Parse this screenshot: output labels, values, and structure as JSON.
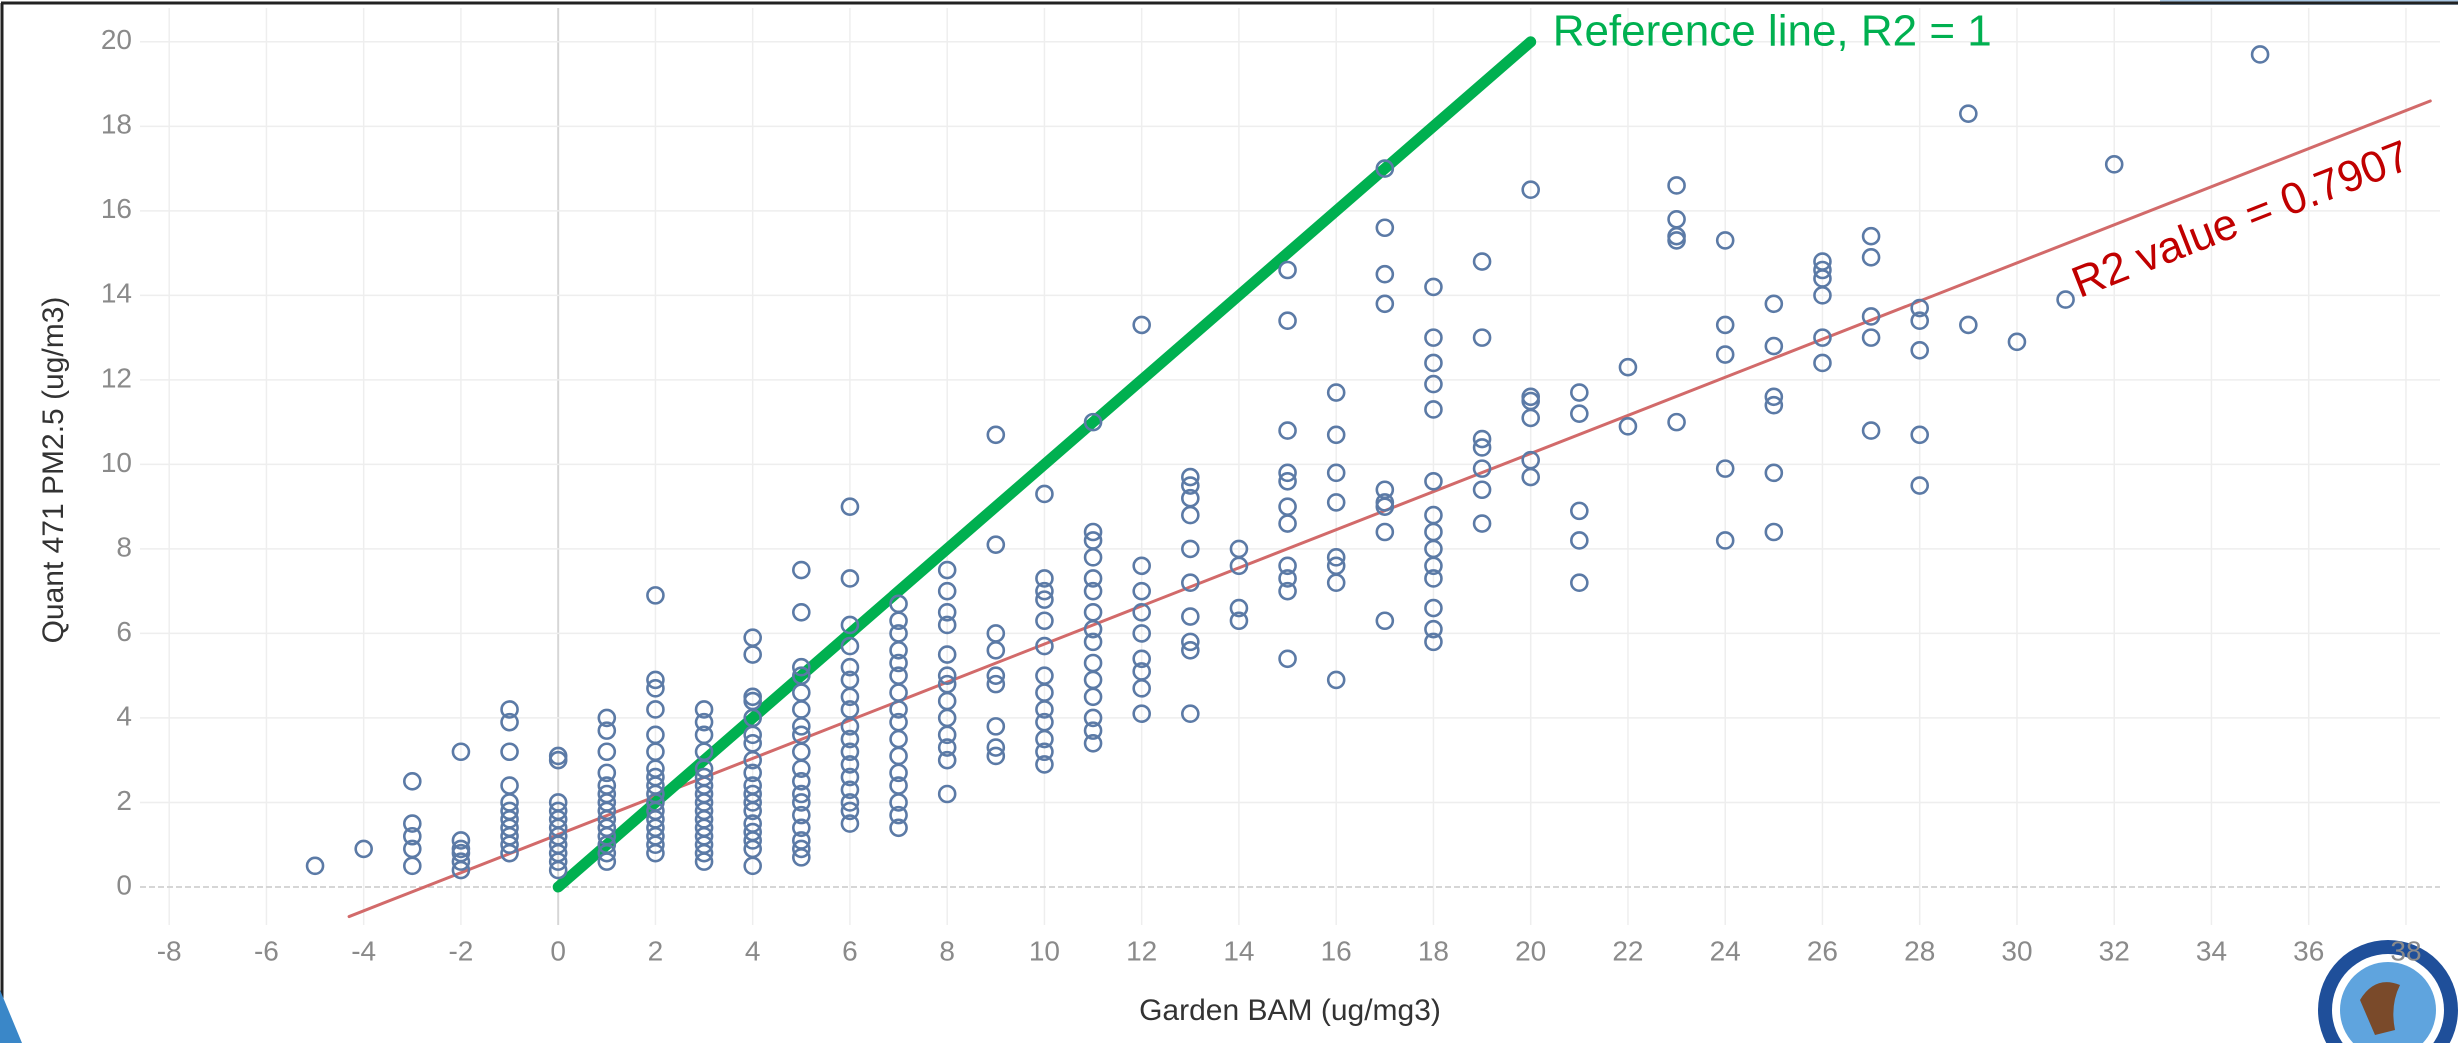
{
  "chart_data": {
    "type": "scatter",
    "x_label": "Garden BAM (ug/mg3)",
    "y_label": "Quant 471 PM2.5 (ug/m3)",
    "xlim": [
      -8.6,
      38.7
    ],
    "ylim": [
      -0.9,
      20.8
    ],
    "xticks": [
      -8,
      -6,
      -4,
      -2,
      0,
      2,
      4,
      6,
      8,
      10,
      12,
      14,
      16,
      18,
      20,
      22,
      24,
      26,
      28,
      30,
      32,
      34,
      36,
      38
    ],
    "yticks": [
      0,
      2,
      4,
      6,
      8,
      10,
      12,
      14,
      16,
      18,
      20
    ],
    "grid": true,
    "color": "#5b7aa6",
    "x": [
      -5,
      -4,
      -3,
      -3,
      -3,
      -3,
      -3,
      -2,
      -2,
      -2,
      -2,
      -2,
      -2,
      -1,
      -1,
      -1,
      -1,
      -1,
      -1,
      -1,
      -1,
      -1,
      -1,
      -1,
      0,
      0,
      0,
      0,
      0,
      0,
      0,
      0,
      0,
      0,
      0,
      1,
      1,
      1,
      1,
      1,
      1,
      1,
      1,
      1,
      1,
      1,
      1,
      1,
      1,
      2,
      2,
      2,
      2,
      2,
      2,
      2,
      2,
      2,
      2,
      2,
      2,
      2,
      2,
      2,
      2,
      2,
      3,
      3,
      3,
      3,
      3,
      3,
      3,
      3,
      3,
      3,
      3,
      3,
      3,
      3,
      3,
      3,
      4,
      4,
      4,
      4,
      4,
      4,
      4,
      4,
      4,
      4,
      4,
      4,
      4,
      4,
      4,
      4,
      4,
      4,
      5,
      5,
      5,
      5,
      5,
      5,
      5,
      5,
      5,
      5,
      5,
      5,
      5,
      5,
      5,
      5,
      5,
      5,
      6,
      6,
      6,
      6,
      6,
      6,
      6,
      6,
      6,
      6,
      6,
      6,
      6,
      6,
      6,
      6,
      6,
      7,
      7,
      7,
      7,
      7,
      7,
      7,
      7,
      7,
      7,
      7,
      7,
      7,
      7,
      7,
      7,
      8,
      8,
      8,
      8,
      8,
      8,
      8,
      8,
      8,
      8,
      8,
      8,
      8,
      9,
      9,
      9,
      9,
      9,
      9,
      9,
      9,
      9,
      10,
      10,
      10,
      10,
      10,
      10,
      10,
      10,
      10,
      10,
      10,
      10,
      10,
      11,
      11,
      11,
      11,
      11,
      11,
      11,
      11,
      11,
      11,
      11,
      11,
      11,
      11,
      11,
      12,
      12,
      12,
      12,
      12,
      12,
      12,
      12,
      12,
      13,
      13,
      13,
      13,
      13,
      13,
      13,
      13,
      13,
      13,
      14,
      14,
      14,
      14,
      15,
      15,
      15,
      15,
      15,
      15,
      15,
      15,
      15,
      15,
      15,
      16,
      16,
      16,
      16,
      16,
      16,
      16,
      16,
      17,
      17,
      17,
      17,
      17,
      17,
      17,
      17,
      17,
      18,
      18,
      18,
      18,
      18,
      18,
      18,
      18,
      18,
      18,
      18,
      18,
      18,
      18,
      19,
      19,
      19,
      19,
      19,
      19,
      19,
      20,
      20,
      20,
      20,
      20,
      20,
      21,
      21,
      21,
      21,
      21,
      22,
      22,
      23,
      23,
      23,
      23,
      23,
      24,
      24,
      24,
      24,
      24,
      25,
      25,
      25,
      25,
      25,
      25,
      26,
      26,
      26,
      26,
      26,
      26,
      27,
      27,
      27,
      27,
      27,
      28,
      28,
      28,
      28,
      28,
      29,
      29,
      30,
      31,
      32,
      35
    ],
    "y": [
      0.5,
      0.9,
      2.5,
      1.5,
      1.2,
      0.9,
      0.5,
      3.2,
      1.1,
      0.9,
      0.8,
      0.6,
      0.4,
      4.2,
      3.9,
      3.2,
      2.4,
      2.0,
      1.8,
      1.6,
      1.4,
      1.2,
      1.0,
      0.8,
      3.1,
      3.0,
      2.0,
      1.8,
      1.6,
      1.4,
      1.2,
      1.0,
      0.8,
      0.6,
      0.4,
      4.0,
      3.7,
      3.2,
      2.7,
      2.4,
      2.2,
      2.0,
      1.8,
      1.6,
      1.4,
      1.2,
      1.0,
      0.8,
      0.6,
      6.9,
      4.9,
      4.7,
      4.2,
      3.6,
      3.2,
      2.8,
      2.6,
      2.4,
      2.2,
      2.0,
      1.8,
      1.6,
      1.4,
      1.2,
      1.0,
      0.8,
      4.2,
      3.9,
      3.6,
      3.2,
      2.8,
      2.6,
      2.4,
      2.2,
      2.0,
      1.8,
      1.6,
      1.4,
      1.2,
      1.0,
      0.8,
      0.6,
      5.9,
      5.5,
      4.5,
      4.4,
      4.0,
      3.6,
      3.4,
      3.0,
      2.7,
      2.4,
      2.2,
      2.0,
      1.8,
      1.5,
      1.3,
      1.1,
      0.9,
      0.5,
      7.5,
      6.5,
      5.2,
      5.0,
      4.6,
      4.2,
      3.8,
      3.6,
      3.2,
      2.8,
      2.5,
      2.2,
      2.0,
      1.7,
      1.4,
      1.1,
      0.9,
      0.7,
      9.0,
      7.3,
      6.2,
      5.7,
      5.2,
      4.9,
      4.5,
      4.2,
      3.8,
      3.5,
      3.2,
      2.9,
      2.6,
      2.3,
      2.0,
      1.8,
      1.5,
      6.7,
      6.3,
      6.0,
      5.6,
      5.3,
      5.0,
      4.6,
      4.2,
      3.9,
      3.5,
      3.1,
      2.7,
      2.4,
      2.0,
      1.7,
      1.4,
      7.5,
      7.0,
      6.5,
      6.2,
      5.5,
      5.0,
      4.8,
      4.4,
      4.0,
      3.6,
      3.3,
      3.0,
      2.2,
      10.7,
      8.1,
      6.0,
      5.6,
      5.0,
      4.8,
      3.8,
      3.3,
      3.1,
      9.3,
      7.3,
      7.0,
      6.8,
      6.3,
      5.7,
      5.0,
      4.6,
      4.2,
      3.9,
      3.5,
      3.2,
      2.9,
      11.0,
      8.4,
      8.2,
      7.8,
      7.3,
      7.0,
      6.5,
      6.1,
      5.8,
      5.3,
      4.9,
      4.5,
      4.0,
      3.7,
      3.4,
      13.3,
      7.6,
      7.0,
      6.5,
      6.0,
      5.4,
      5.1,
      4.7,
      4.1,
      9.7,
      9.5,
      9.2,
      8.8,
      8.0,
      7.2,
      6.4,
      5.8,
      5.6,
      4.1,
      8.0,
      7.6,
      6.6,
      6.3,
      14.6,
      13.4,
      10.8,
      9.8,
      9.6,
      9.0,
      8.6,
      7.6,
      7.3,
      7.0,
      5.4,
      11.7,
      10.7,
      9.8,
      9.1,
      7.8,
      7.6,
      7.2,
      4.9,
      17.0,
      15.6,
      14.5,
      13.8,
      9.4,
      9.1,
      9.0,
      8.4,
      6.3,
      14.2,
      13.0,
      12.4,
      11.9,
      11.3,
      9.6,
      8.8,
      8.4,
      8.0,
      7.6,
      7.3,
      6.6,
      6.1,
      5.8,
      14.8,
      13.0,
      10.6,
      10.4,
      9.9,
      9.4,
      8.6,
      16.5,
      11.6,
      11.5,
      11.1,
      10.1,
      9.7,
      11.7,
      11.2,
      8.9,
      8.2,
      7.2,
      12.3,
      10.9,
      16.6,
      15.8,
      15.4,
      15.3,
      11.0,
      15.3,
      13.3,
      12.6,
      9.9,
      8.2,
      13.8,
      12.8,
      11.6,
      11.4,
      9.8,
      8.4,
      14.8,
      14.6,
      14.4,
      14.0,
      13.0,
      12.4,
      15.4,
      14.9,
      13.5,
      13.0,
      10.8,
      13.7,
      13.4,
      12.7,
      10.7,
      9.5,
      18.3,
      13.3,
      12.9,
      13.9,
      17.1,
      19.7
    ],
    "reference_line": {
      "label": "Reference line, R2 = 1",
      "color": "#00b050",
      "x": [
        0,
        20
      ],
      "y": [
        0,
        20
      ]
    },
    "trend_line": {
      "label": "R2 value = 0.7907",
      "color": "#d26a6a",
      "label_color": "#c00000",
      "x": [
        -4.3,
        38.5
      ],
      "y": [
        -0.7,
        18.6
      ]
    }
  }
}
